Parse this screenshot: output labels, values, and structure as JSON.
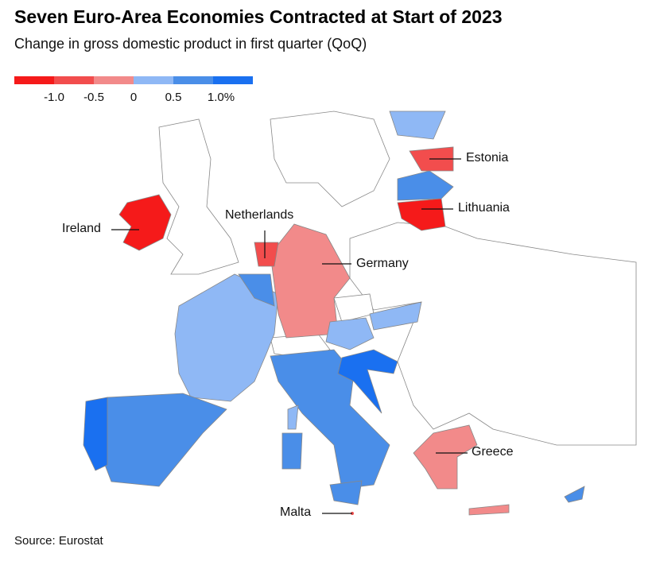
{
  "header": {
    "title": "Seven Euro-Area Economies Contracted at Start of 2023",
    "subtitle": "Change in gross domestic product in first quarter (QoQ)"
  },
  "legend": {
    "colors": [
      "#f51a1a",
      "#f24d4d",
      "#f28a8a",
      "#8fb8f5",
      "#4a8ee8",
      "#1a70f0"
    ],
    "labels": [
      "-1.0",
      "-0.5",
      "0",
      "0.5",
      "1.0%"
    ]
  },
  "map": {
    "labels": [
      "Ireland",
      "Netherlands",
      "Germany",
      "Estonia",
      "Lithuania",
      "Greece",
      "Malta"
    ]
  },
  "footer": {
    "source": "Source: Eurostat"
  }
}
